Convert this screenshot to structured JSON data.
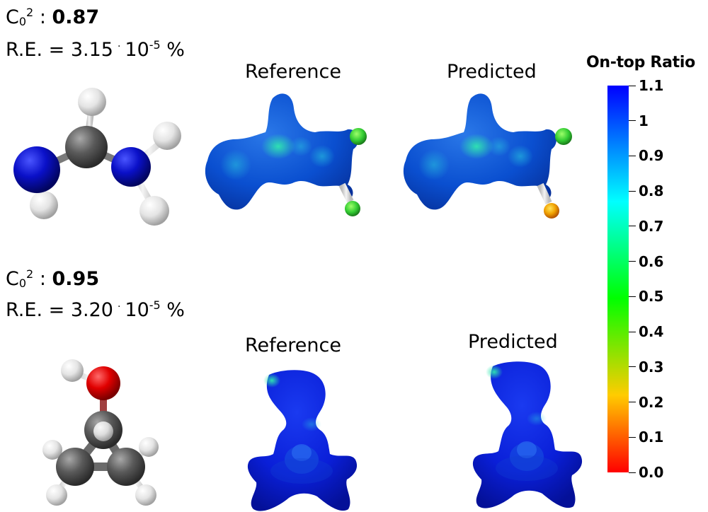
{
  "rows": [
    {
      "c0": {
        "symbol": "C",
        "sub": "0",
        "sup": "2",
        "sep": " : ",
        "value": "0.87"
      },
      "re": {
        "prefix": "R.E. = ",
        "mantissa": "3.15",
        "dot": "·",
        "base": "10",
        "exp": "-5",
        "unit": "%"
      },
      "reference_label": "Reference",
      "predicted_label": "Predicted"
    },
    {
      "c0": {
        "symbol": "C",
        "sub": "0",
        "sup": "2",
        "sep": " : ",
        "value": "0.95"
      },
      "re": {
        "prefix": "R.E. = ",
        "mantissa": "3.20",
        "dot": "·",
        "base": "10",
        "exp": "-5",
        "unit": "%"
      },
      "reference_label": "Reference",
      "predicted_label": "Predicted"
    }
  ],
  "colorbar": {
    "title": "On-top Ratio",
    "ticks": [
      "1.1",
      "1",
      "0.9",
      "0.8",
      "0.7",
      "0.6",
      "0.5",
      "0.4",
      "0.3",
      "0.2",
      "0.1",
      "0.0"
    ],
    "colors": [
      "#ff0000",
      "#ffcc00",
      "#00ff00",
      "#00ffff",
      "#0000ff"
    ]
  },
  "atom_colors": {
    "carbon": "#555555",
    "nitrogen": "#0a10c8",
    "oxygen": "#e00000",
    "hydrogen": "#e8e8e8"
  }
}
